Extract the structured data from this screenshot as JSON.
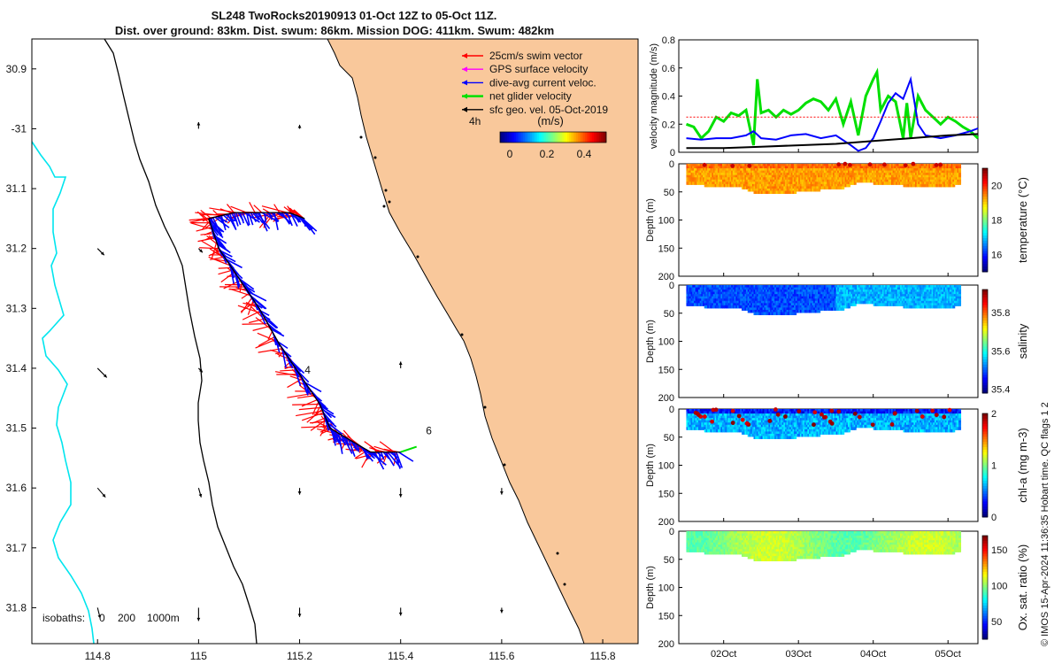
{
  "title": {
    "line1": "SL248 TwoRocks20190913 01-Oct 12Z to 05-Oct 11Z.",
    "line2": "Dist. over ground: 83km. Dist. swum: 86km. Mission DOG: 411km. Swum: 482km"
  },
  "colors": {
    "land": "#F9C89B",
    "swim": "#ff0000",
    "gps": "#ff00ff",
    "dive": "#0000ff",
    "net": "#00e000",
    "geo": "#000000",
    "coast_isobath": "#00e5ee"
  },
  "map": {
    "xlim": [
      114.67,
      115.87
    ],
    "ylim": [
      -31.86,
      -30.85
    ],
    "x_ticks": [
      114.8,
      115,
      115.2,
      115.4,
      115.6,
      115.8
    ],
    "x_tick_labels": [
      "114.8",
      "115",
      "115.2",
      "115.4",
      "115.6",
      "115.8"
    ],
    "y_ticks": [
      -30.9,
      -31,
      -31.1,
      -31.2,
      -31.3,
      -31.4,
      -31.5,
      -31.6,
      -31.7,
      -31.8
    ],
    "y_tick_labels": [
      "30.9",
      "-31",
      "31.1",
      "31.2",
      "31.3",
      "31.4",
      "31.5",
      "31.6",
      "31.7",
      "31.8"
    ],
    "legend": [
      {
        "label": "25cm/s swim vector",
        "color": "swim"
      },
      {
        "label": "GPS surface velocity",
        "color": "gps"
      },
      {
        "label": "dive-avg current veloc.",
        "color": "dive"
      },
      {
        "label": "net glider velocity",
        "color": "net"
      },
      {
        "label": "sfc geo. vel. 05-Oct-2019",
        "color": "geo"
      }
    ],
    "colorbar": {
      "label": "(m/s)",
      "ticks": [
        "0",
        "0.2",
        "0.4"
      ],
      "tag": "4h"
    },
    "isobaths_label": "isobaths:",
    "isobath_values": [
      "0",
      "200",
      "1000m"
    ],
    "day_labels": [
      "4",
      "6"
    ],
    "track": [
      [
        115.02,
        -31.15
      ],
      [
        115.04,
        -31.2
      ],
      [
        115.08,
        -31.25
      ],
      [
        115.12,
        -31.3
      ],
      [
        115.16,
        -31.36
      ],
      [
        115.2,
        -31.41
      ],
      [
        115.24,
        -31.46
      ],
      [
        115.26,
        -31.5
      ],
      [
        115.3,
        -31.52
      ],
      [
        115.34,
        -31.54
      ],
      [
        115.4,
        -31.54
      ]
    ],
    "track_branch": [
      [
        115.02,
        -31.15
      ],
      [
        115.07,
        -31.14
      ],
      [
        115.12,
        -31.14
      ],
      [
        115.18,
        -31.14
      ],
      [
        115.21,
        -31.15
      ]
    ],
    "geo_arrows": [
      {
        "lon": 115.0,
        "lat": -31.0,
        "u": 0.0,
        "v": 0.05
      },
      {
        "lon": 115.2,
        "lat": -31.0,
        "u": 0.0,
        "v": 0.03
      },
      {
        "lon": 114.8,
        "lat": -31.2,
        "u": 0.05,
        "v": -0.05
      },
      {
        "lon": 115.0,
        "lat": -31.2,
        "u": 0.03,
        "v": -0.03
      },
      {
        "lon": 114.8,
        "lat": -31.4,
        "u": 0.07,
        "v": -0.07
      },
      {
        "lon": 115.0,
        "lat": -31.4,
        "u": 0.03,
        "v": -0.03
      },
      {
        "lon": 115.4,
        "lat": -31.4,
        "u": 0.0,
        "v": 0.05
      },
      {
        "lon": 114.8,
        "lat": -31.6,
        "u": 0.06,
        "v": -0.07
      },
      {
        "lon": 115.0,
        "lat": -31.6,
        "u": 0.02,
        "v": -0.07
      },
      {
        "lon": 115.2,
        "lat": -31.6,
        "u": 0.0,
        "v": -0.05
      },
      {
        "lon": 115.4,
        "lat": -31.6,
        "u": 0.0,
        "v": -0.07
      },
      {
        "lon": 115.6,
        "lat": -31.6,
        "u": 0.0,
        "v": -0.05
      },
      {
        "lon": 114.8,
        "lat": -31.8,
        "u": 0.02,
        "v": -0.08
      },
      {
        "lon": 115.0,
        "lat": -31.8,
        "u": 0.0,
        "v": -0.1
      },
      {
        "lon": 115.2,
        "lat": -31.8,
        "u": 0.0,
        "v": -0.07
      },
      {
        "lon": 115.4,
        "lat": -31.8,
        "u": 0.0,
        "v": -0.06
      },
      {
        "lon": 115.6,
        "lat": -31.8,
        "u": 0.0,
        "v": -0.04
      }
    ]
  },
  "chart_data": [
    {
      "type": "line",
      "ylabel": "velocity magnitude (m/s)",
      "ylim": [
        0,
        0.8
      ],
      "y_ticks": [
        "0",
        "0.2",
        "0.4",
        "0.6",
        "0.8"
      ],
      "x_day_range": [
        1.4,
        5.4
      ],
      "series": [
        {
          "name": "net glider velocity",
          "color": "net",
          "x": [
            1.5,
            1.6,
            1.7,
            1.8,
            1.9,
            2.0,
            2.1,
            2.2,
            2.3,
            2.4,
            2.45,
            2.5,
            2.6,
            2.7,
            2.8,
            2.9,
            3.0,
            3.1,
            3.2,
            3.3,
            3.4,
            3.5,
            3.6,
            3.7,
            3.8,
            3.9,
            4.0,
            4.05,
            4.1,
            4.2,
            4.3,
            4.4,
            4.45,
            4.5,
            4.6,
            4.7,
            4.8,
            4.9,
            5.0,
            5.1,
            5.2,
            5.3,
            5.4
          ],
          "values": [
            0.2,
            0.18,
            0.1,
            0.15,
            0.25,
            0.22,
            0.28,
            0.26,
            0.3,
            0.05,
            0.52,
            0.28,
            0.3,
            0.25,
            0.3,
            0.27,
            0.3,
            0.35,
            0.38,
            0.36,
            0.3,
            0.38,
            0.2,
            0.36,
            0.12,
            0.4,
            0.52,
            0.57,
            0.3,
            0.4,
            0.36,
            0.1,
            0.35,
            0.1,
            0.4,
            0.3,
            0.25,
            0.2,
            0.25,
            0.22,
            0.18,
            0.15,
            0.1
          ]
        },
        {
          "name": "dive-avg current veloc.",
          "color": "dive",
          "x": [
            1.5,
            1.7,
            1.9,
            2.1,
            2.3,
            2.4,
            2.5,
            2.7,
            2.9,
            3.1,
            3.3,
            3.5,
            3.7,
            3.8,
            3.9,
            4.0,
            4.1,
            4.2,
            4.3,
            4.4,
            4.5,
            4.6,
            4.7,
            4.9,
            5.1,
            5.3,
            5.4
          ],
          "values": [
            0.1,
            0.09,
            0.1,
            0.1,
            0.12,
            0.15,
            0.1,
            0.09,
            0.12,
            0.13,
            0.1,
            0.12,
            0.05,
            0.01,
            0.03,
            0.1,
            0.22,
            0.35,
            0.42,
            0.38,
            0.52,
            0.2,
            0.12,
            0.1,
            0.12,
            0.15,
            0.17
          ]
        },
        {
          "name": "sfc geo. vel.",
          "color": "geo",
          "x": [
            1.5,
            2.0,
            2.5,
            3.0,
            3.5,
            4.0,
            4.5,
            5.0,
            5.4
          ],
          "values": [
            0.03,
            0.03,
            0.04,
            0.05,
            0.06,
            0.08,
            0.1,
            0.12,
            0.13
          ]
        },
        {
          "name": "25cm/s reference",
          "color": "swim",
          "x": [
            1.5,
            5.4
          ],
          "values": [
            0.25,
            0.25
          ]
        }
      ]
    },
    {
      "type": "heatmap",
      "ylabel": "Depth (m)",
      "y_ticks": [
        "0",
        "50",
        "100",
        "150",
        "200"
      ],
      "ylim": [
        0,
        200
      ],
      "colorbar_label": "temperature (°C)",
      "colorbar_ticks": [
        "16",
        "18",
        "20"
      ],
      "colorbar_range": [
        15,
        21
      ]
    },
    {
      "type": "heatmap",
      "ylabel": "Depth (m)",
      "y_ticks": [
        "0",
        "50",
        "100",
        "150",
        "200"
      ],
      "ylim": [
        0,
        200
      ],
      "colorbar_label": "salinity",
      "colorbar_ticks": [
        "35.4",
        "35.6",
        "35.8"
      ],
      "colorbar_range": [
        35.38,
        35.92
      ]
    },
    {
      "type": "heatmap",
      "ylabel": "Depth (m)",
      "y_ticks": [
        "0",
        "50",
        "100",
        "150",
        "200"
      ],
      "ylim": [
        0,
        200
      ],
      "colorbar_label": "chl-a (mg m-3)",
      "colorbar_ticks": [
        "0",
        "1",
        "2"
      ],
      "colorbar_range": [
        0,
        2
      ]
    },
    {
      "type": "heatmap",
      "ylabel": "Depth (m)",
      "y_ticks": [
        "0",
        "50",
        "100",
        "150",
        "200"
      ],
      "ylim": [
        0,
        200
      ],
      "colorbar_label": "Ox. sat. ratio (%)",
      "colorbar_ticks": [
        "50",
        "100",
        "150"
      ],
      "colorbar_range": [
        25,
        170
      ]
    }
  ],
  "time_axis": {
    "x_day_range": [
      1.4,
      5.4
    ],
    "ticks": [
      {
        "day": 2,
        "label": "02Oct"
      },
      {
        "day": 3,
        "label": "03Oct"
      },
      {
        "day": 4,
        "label": "04Oct"
      },
      {
        "day": 5,
        "label": "05Oct"
      }
    ]
  },
  "sections": {
    "end_day": 5.15,
    "dive_depth": [
      [
        1.5,
        35
      ],
      [
        2.2,
        38
      ],
      [
        2.4,
        48
      ],
      [
        2.8,
        50
      ],
      [
        3.2,
        45
      ],
      [
        3.6,
        40
      ],
      [
        3.8,
        30
      ],
      [
        4.3,
        35
      ],
      [
        4.7,
        40
      ],
      [
        5.15,
        35
      ]
    ]
  },
  "credit": "© IMOS 15-Apr-2024 11:36:35 Hobart time. QC flags 1  2"
}
